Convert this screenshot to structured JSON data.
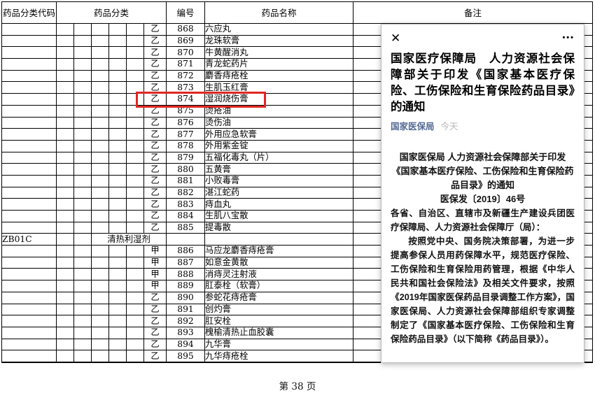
{
  "table": {
    "headers": {
      "code": "药品分类代码",
      "category": "药品分类",
      "number": "编号",
      "name": "药品名称",
      "remark": "备注"
    },
    "rows": [
      {
        "type": "乙",
        "number": "868",
        "name": "六应丸"
      },
      {
        "type": "乙",
        "number": "869",
        "name": "龙珠软膏"
      },
      {
        "type": "乙",
        "number": "870",
        "name": "牛黄醒消丸"
      },
      {
        "type": "乙",
        "number": "871",
        "name": "青龙蛇药片"
      },
      {
        "type": "乙",
        "number": "872",
        "name": "麝香痔疮栓"
      },
      {
        "type": "乙",
        "number": "873",
        "name": "生肌玉红膏"
      },
      {
        "type": "乙",
        "number": "874",
        "name": "湿润烧伤膏",
        "highlight": true
      },
      {
        "type": "乙",
        "number": "875",
        "name": "烫疮油"
      },
      {
        "type": "乙",
        "number": "876",
        "name": "烫伤油"
      },
      {
        "type": "乙",
        "number": "877",
        "name": "外用应急软膏"
      },
      {
        "type": "乙",
        "number": "878",
        "name": "外用紫金锭"
      },
      {
        "type": "乙",
        "number": "879",
        "name": "五福化毒丸（片）"
      },
      {
        "type": "乙",
        "number": "880",
        "name": "五黄膏"
      },
      {
        "type": "乙",
        "number": "881",
        "name": "小败毒膏"
      },
      {
        "type": "乙",
        "number": "882",
        "name": "湛江蛇药"
      },
      {
        "type": "乙",
        "number": "883",
        "name": "痔血丸"
      },
      {
        "type": "乙",
        "number": "884",
        "name": "生肌八宝散"
      },
      {
        "type": "乙",
        "number": "885",
        "name": "提毒散"
      },
      {
        "section": true,
        "code": "ZB01C",
        "category": "清热利湿剂"
      },
      {
        "type": "甲",
        "number": "886",
        "name": "马应龙麝香痔疮膏"
      },
      {
        "type": "甲",
        "number": "887",
        "name": "如意金黄散"
      },
      {
        "type": "甲",
        "number": "888",
        "name": "消痔灵注射液"
      },
      {
        "type": "甲",
        "number": "889",
        "name": "肛泰栓（软膏）"
      },
      {
        "type": "乙",
        "number": "890",
        "name": "参蛇花痔疮膏"
      },
      {
        "type": "乙",
        "number": "891",
        "name": "创灼膏"
      },
      {
        "type": "乙",
        "number": "892",
        "name": "肛安栓"
      },
      {
        "type": "乙",
        "number": "893",
        "name": "槐榆清热止血胶囊"
      },
      {
        "type": "乙",
        "number": "894",
        "name": "九华膏"
      },
      {
        "type": "乙",
        "number": "895",
        "name": "九华痔疮栓"
      }
    ],
    "highlight_number": "874"
  },
  "footer": {
    "page": "第 38 页"
  },
  "overlay": {
    "close_icon": "✕",
    "more_icon": "•••",
    "title": "国家医疗保障局　人力资源社会保障部关于印发《国家基本医疗保险、工伤保险和生育保险药品目录》的通知",
    "source": "国家医保局",
    "time": "今天",
    "doc_title_lines": [
      "国家医保局 人力资源社会保障部关于印发",
      "《国家基本医疗保险、工伤保险和生育保险药",
      "品目录》的通知",
      "医保发〔2019〕46号"
    ],
    "paragraphs": [
      "各省、自治区、直辖市及新疆生产建设兵团医疗保障局、人力资源社会保障厅（局）：",
      "按照党中央、国务院决策部署，为进一步提高参保人员用药保障水平，规范医疗保险、工伤保险和生育保险用药管理，根据《中华人民共和国社会保险法》及相关文件要求，按照《2019年国家医保药品目录调整工作方案》，国家医保局、人力资源社会保障部组织专家调整制定了《国家基本医疗保险、工伤保险和生育保险药品目录》（以下简称《药品目录》）。"
    ]
  },
  "colors": {
    "highlight_red": "#e02722",
    "source_blue": "#576b95",
    "table_border": "#000000",
    "time_gray": "#b7b7b7"
  }
}
